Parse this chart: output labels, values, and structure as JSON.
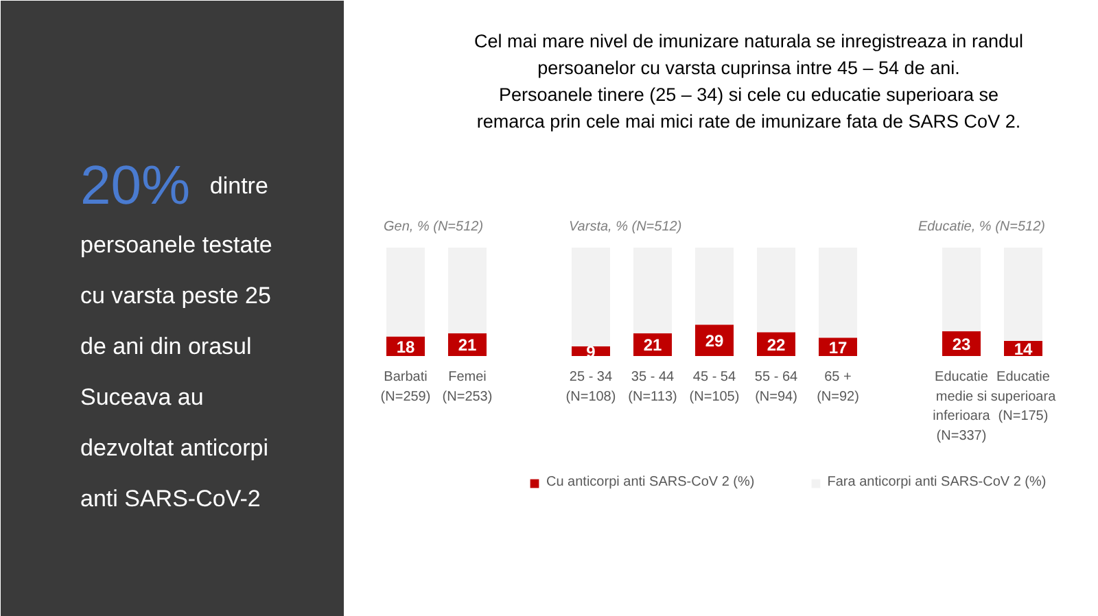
{
  "chart_data": {
    "type": "bar",
    "stacked": true,
    "title": "Cel mai mare nivel de imunizare naturala se inregistreaza in randul\npersoanelor cu varsta cuprinsa intre 45 – 54 de ani.\nPersoanele tinere (25 – 34) si cele cu educatie superioara se\nremarca prin cele mai mici rate de imunizare fata de SARS CoV 2.",
    "subtitle": "20% dintre persoanele testate cu varsta peste 25 de ani din orasul Suceava au dezvoltat anticorpi anti SARS-CoV-2",
    "annotations": [
      "Gen, % (N=512)",
      "Varsta, % (N=512)",
      "Educatie, % (N=512)"
    ],
    "categories": [
      "Barbati\n(N=259)",
      "Femei\n(N=253)",
      null,
      "25 - 34\n(N=108)",
      "35 - 44\n(N=113)",
      "45 - 54\n(N=105)",
      "55 - 64\n(N=94)",
      "65 +\n(N=92)",
      null,
      "Educatie\nmedie si\ninferioara\n(N=337)",
      "Educatie\nsuperioara\n(N=175)"
    ],
    "series": [
      {
        "name": "Cu anticorpi anti SARS-CoV 2 (%)",
        "color": "#c00000",
        "values": [
          18,
          21,
          null,
          9,
          21,
          29,
          22,
          17,
          null,
          23,
          14
        ],
        "value_labels": [
          "18",
          "21",
          null,
          "9",
          "21",
          "29",
          "22",
          "17",
          null,
          "23",
          "14"
        ]
      },
      {
        "name": "Fara anticorpi anti SARS-CoV 2 (%)",
        "color": "#f2f2f2",
        "values": [
          82,
          79,
          null,
          91,
          79,
          71,
          78,
          83,
          null,
          77,
          86
        ]
      }
    ],
    "legend": "bottom"
  }
}
